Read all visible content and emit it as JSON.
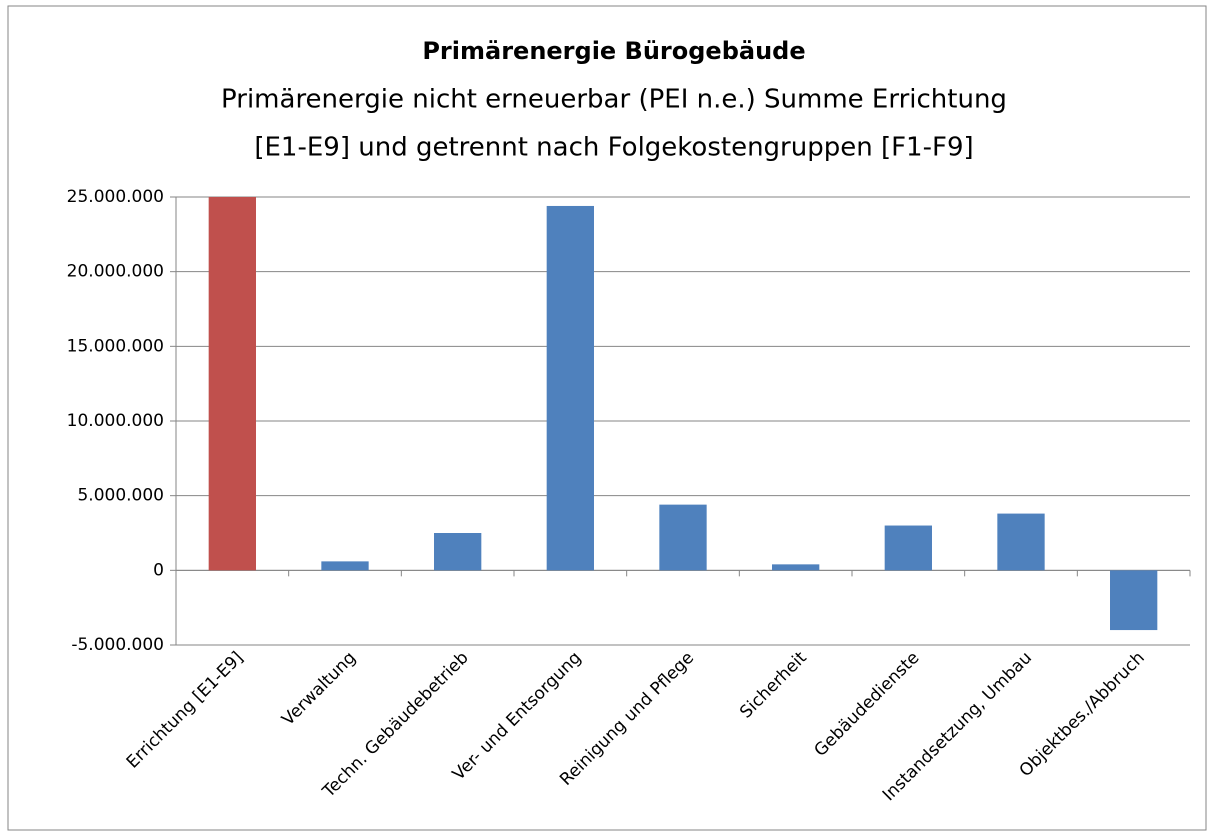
{
  "chart_data": {
    "type": "bar",
    "title": "Primärenergie Bürogebäude",
    "subtitle": [
      "Primärenergie nicht erneuerbar (PEI n.e.) Summe Errichtung",
      "[E1-E9] und getrennt nach Folgekostengruppen [F1-F9]"
    ],
    "categories": [
      "Errichtung [E1-E9]",
      "Verwaltung",
      "Techn. Gebäudebetrieb",
      "Ver- und Entsorgung",
      "Reinigung und Pflege",
      "Sicherheit",
      "Gebäudedienste",
      "Instandsetzung, Umbau",
      "Objektbes./Abbruch"
    ],
    "values": [
      25000000,
      600000,
      2500000,
      24400000,
      4400000,
      400000,
      3000000,
      3800000,
      -4000000
    ],
    "colors": [
      "#c0504d",
      "#4f81bd",
      "#4f81bd",
      "#4f81bd",
      "#4f81bd",
      "#4f81bd",
      "#4f81bd",
      "#4f81bd",
      "#4f81bd"
    ],
    "ylim": [
      -5000000,
      25000000
    ],
    "yticks": [
      {
        "value": -5000000,
        "label": "-5.000.000"
      },
      0,
      {
        "value": 5000000,
        "label": "5.000.000"
      },
      {
        "value": 10000000,
        "label": "10.000.000"
      },
      {
        "value": 15000000,
        "label": "15.000.000"
      },
      {
        "value": 20000000,
        "label": "20.000.000"
      },
      {
        "value": 25000000,
        "label": "25.000.000"
      }
    ],
    "grid": true
  }
}
